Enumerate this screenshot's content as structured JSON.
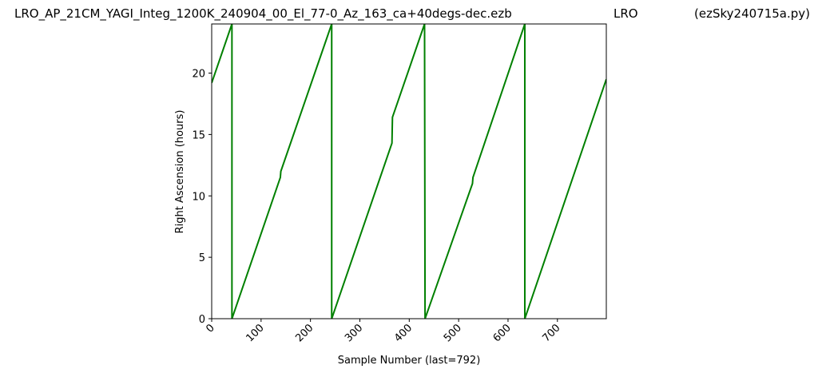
{
  "chart_data": {
    "type": "line",
    "titles": [
      "LRO_AP_21CM_YAGI_Integ_1200K_240904_00_El_77-0_Az_163_ca+40degs-dec.ezb",
      "LRO",
      "(ezSky240715a.py)"
    ],
    "xlabel": "Sample Number (last=792)",
    "ylabel": "Right Ascension (hours)",
    "x": [
      0,
      41,
      41,
      139,
      140,
      243,
      243,
      365,
      366,
      431,
      432,
      528,
      529,
      634,
      634,
      799
    ],
    "values": [
      19.2,
      24,
      0,
      11.5,
      12,
      24,
      0,
      14.3,
      16.4,
      24,
      0,
      11,
      11.5,
      24,
      0,
      19.5
    ],
    "color": "#008000",
    "xlim": [
      0,
      799
    ],
    "ylim": [
      0,
      24
    ],
    "xticks": [
      0,
      100,
      200,
      300,
      400,
      500,
      600,
      700
    ],
    "yticks": [
      0,
      5,
      10,
      15,
      20
    ],
    "grid": false
  }
}
